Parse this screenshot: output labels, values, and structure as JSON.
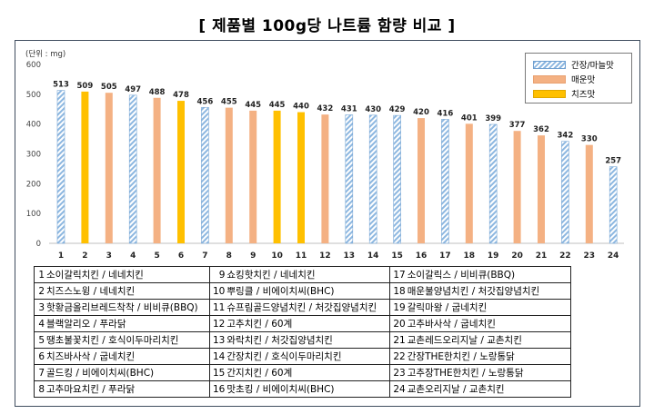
{
  "title": "[ 제품별 100g당 나트륨 함량 비교 ]",
  "chart_data": {
    "type": "bar",
    "unit_label": "(단위 : mg)",
    "ylim": [
      0,
      600
    ],
    "yticks": [
      0,
      100,
      200,
      300,
      400,
      500,
      600
    ],
    "grid": false,
    "legend_position": "top-right",
    "categories": [
      "1",
      "2",
      "3",
      "4",
      "5",
      "6",
      "7",
      "8",
      "9",
      "10",
      "11",
      "12",
      "13",
      "14",
      "15",
      "16",
      "17",
      "18",
      "19",
      "20",
      "21",
      "22",
      "23",
      "24"
    ],
    "values": [
      513,
      509,
      505,
      497,
      488,
      478,
      456,
      455,
      445,
      445,
      440,
      432,
      431,
      430,
      429,
      420,
      416,
      401,
      399,
      377,
      362,
      342,
      330,
      257
    ],
    "flavor": [
      "간장/마늘맛",
      "치즈맛",
      "매운맛",
      "간장/마늘맛",
      "매운맛",
      "치즈맛",
      "간장/마늘맛",
      "매운맛",
      "매운맛",
      "치즈맛",
      "치즈맛",
      "매운맛",
      "간장/마늘맛",
      "간장/마늘맛",
      "간장/마늘맛",
      "매운맛",
      "간장/마늘맛",
      "매운맛",
      "간장/마늘맛",
      "매운맛",
      "매운맛",
      "간장/마늘맛",
      "매운맛",
      "간장/마늘맛"
    ],
    "series": [
      {
        "name": "간장/마늘맛",
        "color": "#9dc3e6",
        "pattern": "hatch"
      },
      {
        "name": "매운맛",
        "color": "#f4b183",
        "pattern": "solid"
      },
      {
        "name": "치즈맛",
        "color": "#ffc000",
        "pattern": "solid"
      }
    ]
  },
  "products": [
    {
      "no": "1",
      "name": "소이갈릭치킨 / 네네치킨"
    },
    {
      "no": "2",
      "name": "치즈스노윙 / 네네치킨"
    },
    {
      "no": "3",
      "name": "핫황금올리브레드착착 / 비비큐(BBQ)"
    },
    {
      "no": "4",
      "name": "블랙알리오 / 푸라닭"
    },
    {
      "no": "5",
      "name": "땡초불꽃치킨 / 호식이두마리치킨"
    },
    {
      "no": "6",
      "name": "치즈바사삭 / 굽네치킨"
    },
    {
      "no": "7",
      "name": "골드킹 / 비에이치씨(BHC)"
    },
    {
      "no": "8",
      "name": "고추마요치킨 / 푸라닭"
    },
    {
      "no": "9",
      "name": "쇼킹핫치킨 / 네네치킨"
    },
    {
      "no": "10",
      "name": "뿌링클 / 비에이치씨(BHC)"
    },
    {
      "no": "11",
      "name": "슈프림골드양념치킨 / 처갓집양념치킨"
    },
    {
      "no": "12",
      "name": "고추치킨 / 60계"
    },
    {
      "no": "13",
      "name": "와락치킨 / 처갓집양념치킨"
    },
    {
      "no": "14",
      "name": "간장치킨 / 호식이두마리치킨"
    },
    {
      "no": "15",
      "name": "간지치킨 / 60계"
    },
    {
      "no": "16",
      "name": "맛초킹 / 비에이치씨(BHC)"
    },
    {
      "no": "17",
      "name": "소이갈릭스 / 비비큐(BBQ)"
    },
    {
      "no": "18",
      "name": "매운불양념치킨 / 처갓집양념치킨"
    },
    {
      "no": "19",
      "name": "갈릭마왕 / 굽네치킨"
    },
    {
      "no": "20",
      "name": "고추바사삭 / 굽네치킨"
    },
    {
      "no": "21",
      "name": "교촌레드오리지날 / 교촌치킨"
    },
    {
      "no": "22",
      "name": "간장THE한치킨 / 노랑통닭"
    },
    {
      "no": "23",
      "name": "고추장THE한치킨 / 노랑통닭"
    },
    {
      "no": "24",
      "name": "교촌오리지날 / 교촌치킨"
    }
  ]
}
